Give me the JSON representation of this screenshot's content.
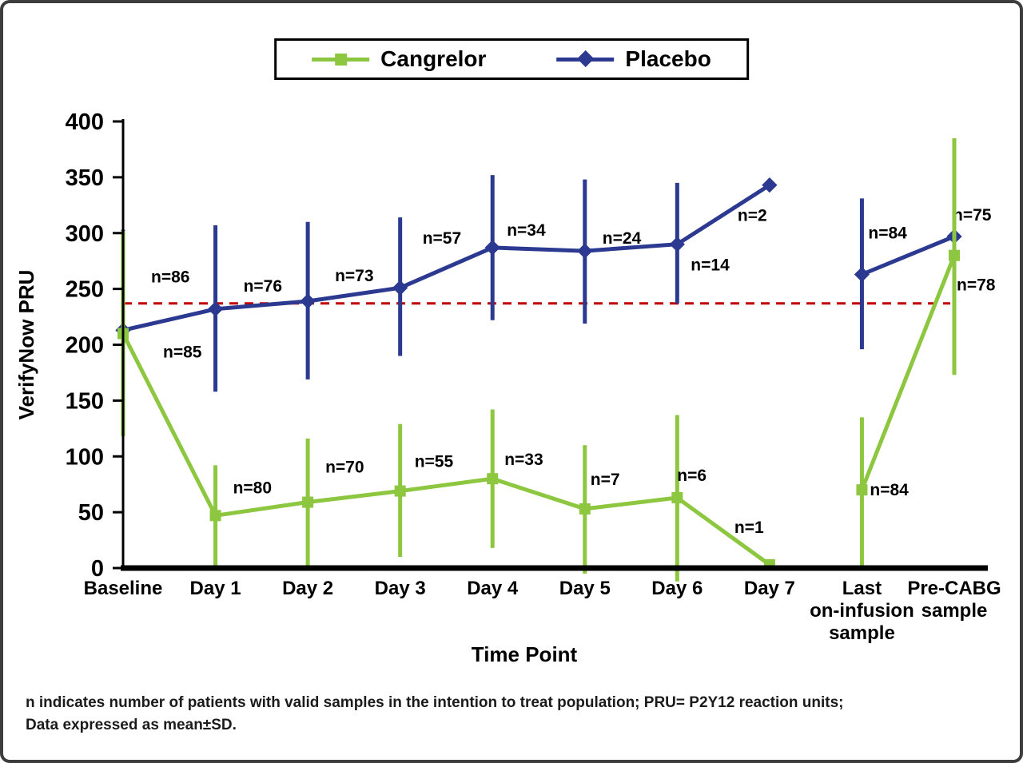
{
  "page": {
    "background": "#ffffff",
    "frame_border_color": "#3d3d3d"
  },
  "legend": {
    "position": "top-center",
    "items": [
      {
        "label": "Cangrelor",
        "color": "#8dc63f",
        "marker": "square"
      },
      {
        "label": "Placebo",
        "color": "#2b3990",
        "marker": "diamond"
      }
    ]
  },
  "chart_data": {
    "type": "line",
    "title": "",
    "xlabel": "Time Point",
    "ylabel": "VerifyNow PRU",
    "ylim": [
      0,
      400
    ],
    "ytick_step": 50,
    "grid": false,
    "legend_position": "top-center",
    "categories": [
      "Baseline",
      "Day 1",
      "Day 2",
      "Day 3",
      "Day 4",
      "Day 5",
      "Day 6",
      "Day 7",
      "Last\non-infusion\nsample",
      "Pre-CABG\nsample"
    ],
    "line_break_after_index": 7,
    "reference_line": {
      "y": 237,
      "color": "#c00000",
      "style": "dashed"
    },
    "series": [
      {
        "name": "Placebo",
        "color": "#2b3990",
        "marker": "diamond",
        "values": [
          213,
          232,
          239,
          251,
          287,
          284,
          290,
          343,
          263,
          297
        ],
        "err_high": [
          303,
          307,
          310,
          314,
          352,
          348,
          345,
          null,
          331,
          364
        ],
        "err_low": [
          128,
          158,
          169,
          190,
          222,
          219,
          237,
          null,
          196,
          230
        ],
        "n_labels": [
          "n=86",
          "n=76",
          "n=73",
          "n=57",
          "n=34",
          "n=24",
          "n=14",
          "n=2",
          "n=84",
          "n=75"
        ],
        "label_offsets": [
          [
            35,
            -60
          ],
          [
            35,
            -22
          ],
          [
            34,
            -25
          ],
          [
            28,
            -55
          ],
          [
            18,
            -15
          ],
          [
            22,
            -9
          ],
          [
            17,
            33
          ],
          [
            -40,
            45
          ],
          [
            8,
            -45
          ],
          [
            -2,
            -20
          ]
        ]
      },
      {
        "name": "Cangrelor",
        "color": "#8dc63f",
        "marker": "square",
        "values": [
          210,
          47,
          59,
          69,
          80,
          53,
          63,
          3,
          70,
          280
        ],
        "err_high": [
          302,
          92,
          116,
          129,
          142,
          110,
          137,
          null,
          135,
          385
        ],
        "err_low": [
          118,
          1,
          2,
          10,
          18,
          -5,
          -12,
          null,
          0,
          173
        ],
        "n_labels": [
          "n=85",
          "n=80",
          "n=70",
          "n=55",
          "n=33",
          "n=7",
          "n=6",
          "n=1",
          "n=84",
          "n=78"
        ],
        "label_offsets": [
          [
            50,
            30
          ],
          [
            22,
            -28
          ],
          [
            22,
            -37
          ],
          [
            18,
            -30
          ],
          [
            15,
            -17
          ],
          [
            7,
            -30
          ],
          [
            0,
            -21
          ],
          [
            -44,
            -40
          ],
          [
            10,
            7
          ],
          [
            3,
            44
          ]
        ]
      }
    ]
  },
  "footnote": {
    "line1": "n indicates number of patients with valid samples in the intention to treat population; PRU= P2Y12 reaction units;",
    "line2": "Data expressed as mean±SD."
  }
}
